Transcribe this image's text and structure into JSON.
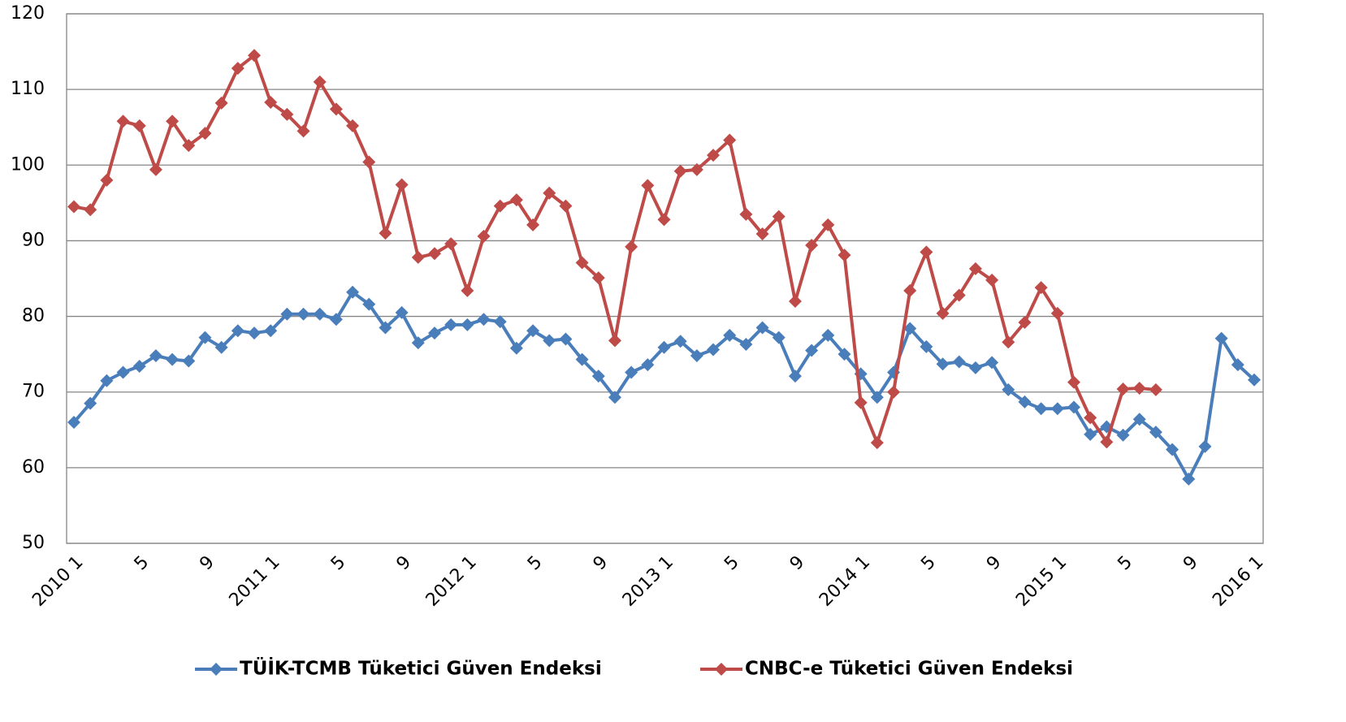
{
  "chart_data": {
    "type": "line",
    "categories": [
      "2010 1",
      null,
      null,
      null,
      "5",
      null,
      null,
      null,
      "9",
      null,
      null,
      null,
      "2011 1",
      null,
      null,
      null,
      "5",
      null,
      null,
      null,
      "9",
      null,
      null,
      null,
      "2012 1",
      null,
      null,
      null,
      "5",
      null,
      null,
      null,
      "9",
      null,
      null,
      null,
      "2013 1",
      null,
      null,
      null,
      "5",
      null,
      null,
      null,
      "9",
      null,
      null,
      null,
      "2014 1",
      null,
      null,
      null,
      "5",
      null,
      null,
      null,
      "9",
      null,
      null,
      null,
      "2015 1",
      null,
      null,
      null,
      "5",
      null,
      null,
      null,
      "9",
      null,
      null,
      null,
      "2016 1"
    ],
    "series": [
      {
        "name": "TÜİK-TCMB Tüketici Güven Endeksi",
        "color": "#4a7ebb",
        "values": [
          66,
          68.5,
          71.5,
          72.6,
          73.4,
          74.8,
          74.3,
          74.1,
          77.2,
          75.9,
          78.1,
          77.8,
          78.1,
          80.3,
          80.3,
          80.3,
          79.6,
          83.2,
          81.6,
          78.5,
          80.5,
          76.5,
          77.8,
          78.9,
          78.9,
          79.6,
          79.3,
          75.8,
          78.1,
          76.8,
          77,
          74.3,
          72.1,
          69.3,
          72.6,
          73.6,
          75.9,
          76.7,
          74.8,
          75.6,
          77.5,
          76.3,
          78.5,
          77.2,
          72.1,
          75.5,
          77.5,
          75,
          72.4,
          69.3,
          72.6,
          78.4,
          76,
          73.7,
          74,
          73.2,
          73.9,
          70.3,
          68.7,
          67.8,
          67.8,
          68,
          64.4,
          65.4,
          64.3,
          66.4,
          64.7,
          62.4,
          58.5,
          62.8,
          77.1,
          73.6,
          71.6
        ]
      },
      {
        "name": "CNBC-e Tüketici Güven Endeksi",
        "color": "#be4b48",
        "values": [
          94.5,
          94.1,
          98,
          105.8,
          105.2,
          99.4,
          105.8,
          102.6,
          104.2,
          108.2,
          112.8,
          114.5,
          108.3,
          106.7,
          104.5,
          111,
          107.4,
          105.2,
          100.4,
          91,
          97.4,
          87.8,
          88.3,
          89.6,
          83.4,
          90.6,
          94.6,
          95.4,
          92.1,
          96.3,
          94.6,
          87.1,
          85.1,
          76.8,
          89.2,
          97.3,
          92.8,
          99.2,
          99.4,
          101.3,
          103.3,
          93.5,
          90.9,
          93.2,
          82,
          89.4,
          92.1,
          88.1,
          68.6,
          63.3,
          70,
          83.4,
          88.5,
          80.4,
          82.8,
          86.3,
          84.8,
          76.6,
          79.2,
          83.8,
          80.4,
          71.3,
          66.6,
          63.4,
          70.4,
          70.5,
          70.3,
          null,
          null,
          null,
          null,
          null,
          null
        ]
      }
    ],
    "ylim": [
      50,
      120
    ],
    "yticks": [
      50,
      60,
      70,
      80,
      90,
      100,
      110,
      120
    ],
    "grid": true,
    "legend": "bottom"
  }
}
